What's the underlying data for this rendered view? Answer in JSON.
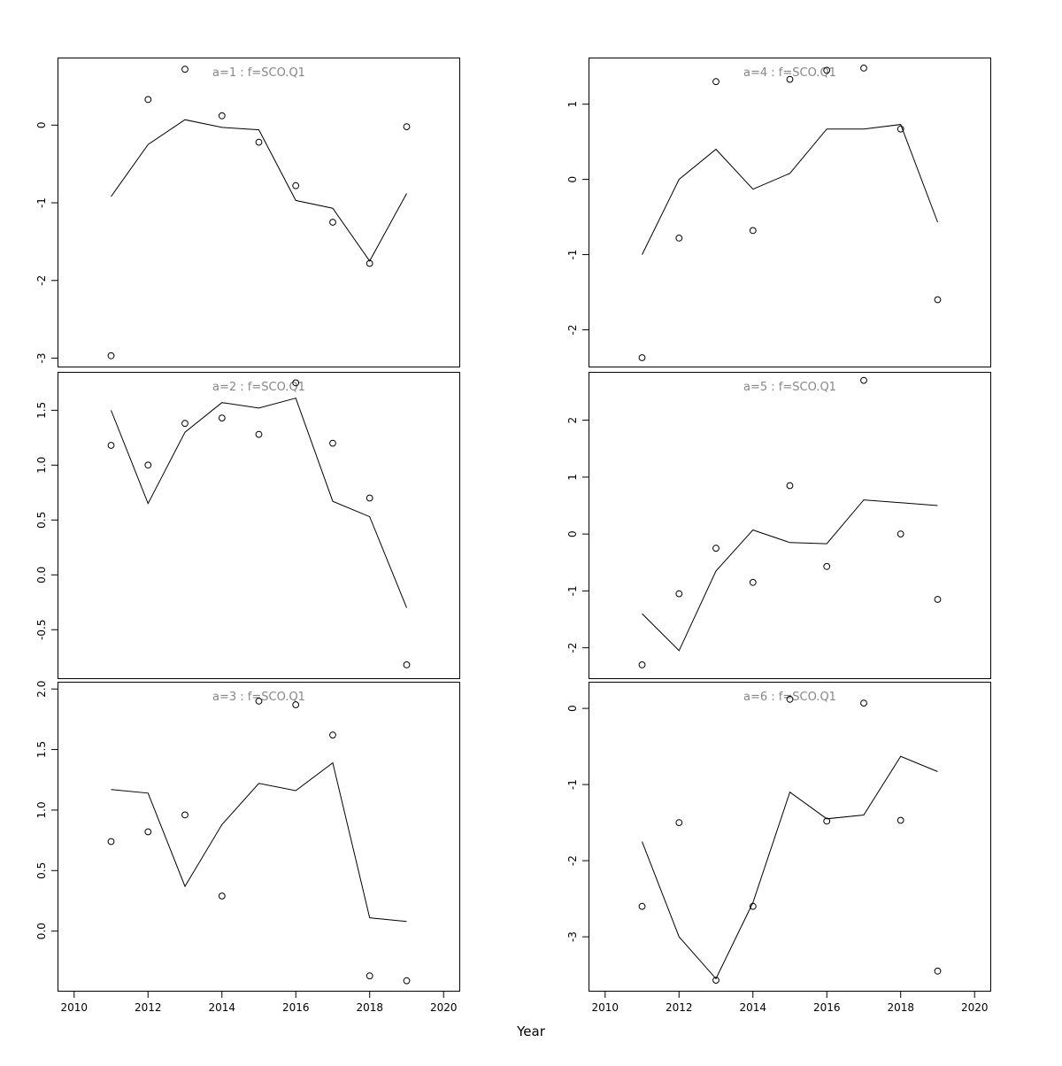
{
  "figure": {
    "background": "#ffffff",
    "axis_color": "#000000",
    "line_color": "#000000",
    "marker_color": "#000000",
    "title_color": "#878787"
  },
  "chart_data": {
    "type": "line",
    "layout_hint": "3 rows x 2 columns of panels, shared x axis, open-circle observations with fitted line",
    "xlabel": "Year",
    "x": [
      2011,
      2012,
      2013,
      2014,
      2015,
      2016,
      2017,
      2018,
      2019
    ],
    "xlim": [
      2009.55,
      2020.45
    ],
    "x_ticks": [
      2010,
      2012,
      2014,
      2016,
      2018,
      2020
    ],
    "x_tick_labels": [
      "2010",
      "2012",
      "2014",
      "2016",
      "2018",
      "2020"
    ],
    "series_names": [
      "fitted-line",
      "observed-points"
    ],
    "panels": [
      {
        "title": "a=1 : f=SCO.Q1",
        "ylim": [
          -3.12,
          0.87
        ],
        "y_ticks": [
          0,
          -1,
          -2,
          -3
        ],
        "y_tick_labels": [
          "0",
          "-1",
          "-2",
          "-3"
        ],
        "line": [
          -0.92,
          -0.25,
          0.07,
          -0.03,
          -0.06,
          -0.97,
          -1.07,
          -1.75,
          -0.88
        ],
        "points": [
          -2.97,
          0.33,
          0.72,
          0.12,
          -0.22,
          -0.78,
          -1.25,
          -1.78,
          -0.02
        ]
      },
      {
        "title": "a=2 : f=SCO.Q1",
        "ylim": [
          -0.95,
          1.85
        ],
        "y_ticks": [
          1.5,
          1.0,
          0.5,
          0.0,
          -0.5
        ],
        "y_tick_labels": [
          "1.5",
          "1.0",
          "0.5",
          "0.0",
          "-0.5"
        ],
        "line": [
          1.5,
          0.65,
          1.3,
          1.57,
          1.52,
          1.61,
          0.67,
          0.53,
          -0.3
        ],
        "points": [
          1.18,
          1.0,
          1.38,
          1.43,
          1.28,
          1.75,
          1.2,
          0.7,
          -0.82
        ]
      },
      {
        "title": "a=3 : f=SCO.Q1",
        "ylim": [
          -0.5,
          2.06
        ],
        "y_ticks": [
          2.0,
          1.5,
          1.0,
          0.5,
          0.0
        ],
        "y_tick_labels": [
          "2.0",
          "1.5",
          "1.0",
          "0.5",
          "0.0"
        ],
        "line": [
          1.17,
          1.14,
          0.37,
          0.88,
          1.22,
          1.16,
          1.39,
          0.11,
          0.08
        ],
        "points": [
          0.74,
          0.82,
          0.96,
          0.29,
          1.9,
          1.87,
          1.62,
          -0.37,
          -0.41
        ]
      },
      {
        "title": "a=4 : f=SCO.Q1",
        "ylim": [
          -2.5,
          1.62
        ],
        "y_ticks": [
          1,
          0,
          -1,
          -2
        ],
        "y_tick_labels": [
          "1",
          "0",
          "-1",
          "-2"
        ],
        "line": [
          -1.0,
          0.0,
          0.4,
          -0.13,
          0.08,
          0.67,
          0.67,
          0.73,
          -0.57
        ],
        "points": [
          -2.37,
          -0.78,
          1.3,
          -0.68,
          1.33,
          1.45,
          1.48,
          0.67,
          -1.6
        ]
      },
      {
        "title": "a=5 : f=SCO.Q1",
        "ylim": [
          -2.55,
          2.85
        ],
        "y_ticks": [
          2,
          1,
          0,
          -1,
          -2
        ],
        "y_tick_labels": [
          "2",
          "1",
          "0",
          "-1",
          "-2"
        ],
        "line": [
          -1.4,
          -2.05,
          -0.65,
          0.07,
          -0.15,
          -0.17,
          0.6,
          0.55,
          0.5
        ],
        "points": [
          -2.3,
          -1.05,
          -0.25,
          -0.85,
          0.85,
          -0.57,
          2.7,
          0.0,
          -1.15
        ]
      },
      {
        "title": "a=6 : f=SCO.Q1",
        "ylim": [
          -3.72,
          0.35
        ],
        "y_ticks": [
          0,
          -1,
          -2,
          -3
        ],
        "y_tick_labels": [
          "0",
          "-1",
          "-2",
          "-3"
        ],
        "line": [
          -1.75,
          -3.0,
          -3.55,
          -2.55,
          -1.1,
          -1.45,
          -1.4,
          -0.63,
          -0.83
        ],
        "points": [
          -2.6,
          -1.5,
          -3.57,
          -2.6,
          0.12,
          -1.48,
          0.07,
          -1.47,
          -3.45
        ]
      }
    ]
  }
}
